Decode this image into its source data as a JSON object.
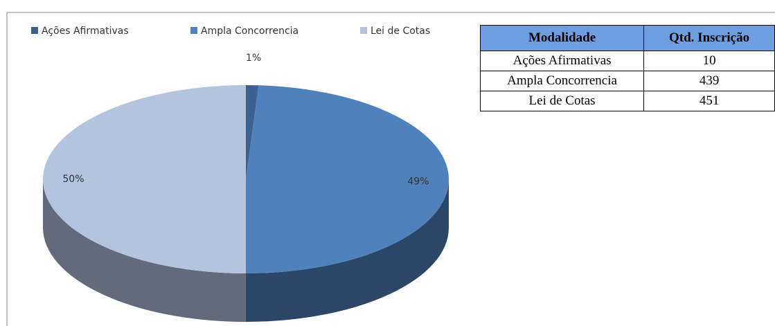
{
  "chart_data": {
    "type": "pie",
    "categories": [
      "Ações Afirmativas",
      "Ampla Concorrencia",
      "Lei de Cotas"
    ],
    "values": [
      1,
      49,
      50
    ],
    "value_labels": [
      "1%",
      "49%",
      "50%"
    ],
    "colors": [
      "#3b6191",
      "#4f81bd",
      "#b4c3de"
    ],
    "legend": "top"
  },
  "table": {
    "header": [
      "Modalidade",
      "Qtd. Inscrição"
    ],
    "rows": [
      [
        "Ações Afirmativas",
        "10"
      ],
      [
        "Ampla Concorrencia",
        "439"
      ],
      [
        "Lei de Cotas",
        "451"
      ]
    ]
  }
}
